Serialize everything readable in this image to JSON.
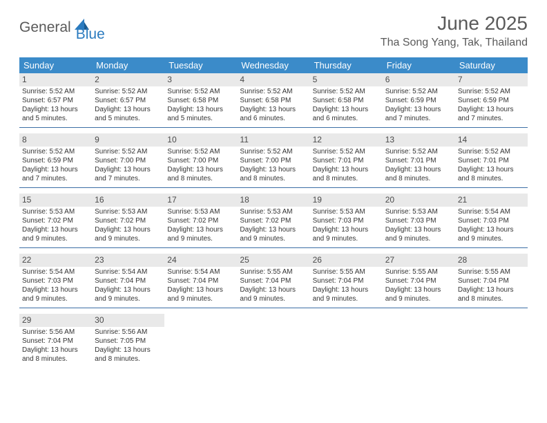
{
  "logo": {
    "text1": "General",
    "text2": "Blue",
    "icon_color": "#2b7bbf"
  },
  "title": "June 2025",
  "location": "Tha Song Yang, Tak, Thailand",
  "colors": {
    "header_bg": "#3b8bc9",
    "header_text": "#ffffff",
    "daynum_bg": "#e9e9e9",
    "rule": "#3b6ea5",
    "body_text": "#333333"
  },
  "dow": [
    "Sunday",
    "Monday",
    "Tuesday",
    "Wednesday",
    "Thursday",
    "Friday",
    "Saturday"
  ],
  "weeks": [
    [
      {
        "n": "1",
        "sr": "Sunrise: 5:52 AM",
        "ss": "Sunset: 6:57 PM",
        "dl": "Daylight: 13 hours and 5 minutes."
      },
      {
        "n": "2",
        "sr": "Sunrise: 5:52 AM",
        "ss": "Sunset: 6:57 PM",
        "dl": "Daylight: 13 hours and 5 minutes."
      },
      {
        "n": "3",
        "sr": "Sunrise: 5:52 AM",
        "ss": "Sunset: 6:58 PM",
        "dl": "Daylight: 13 hours and 5 minutes."
      },
      {
        "n": "4",
        "sr": "Sunrise: 5:52 AM",
        "ss": "Sunset: 6:58 PM",
        "dl": "Daylight: 13 hours and 6 minutes."
      },
      {
        "n": "5",
        "sr": "Sunrise: 5:52 AM",
        "ss": "Sunset: 6:58 PM",
        "dl": "Daylight: 13 hours and 6 minutes."
      },
      {
        "n": "6",
        "sr": "Sunrise: 5:52 AM",
        "ss": "Sunset: 6:59 PM",
        "dl": "Daylight: 13 hours and 7 minutes."
      },
      {
        "n": "7",
        "sr": "Sunrise: 5:52 AM",
        "ss": "Sunset: 6:59 PM",
        "dl": "Daylight: 13 hours and 7 minutes."
      }
    ],
    [
      {
        "n": "8",
        "sr": "Sunrise: 5:52 AM",
        "ss": "Sunset: 6:59 PM",
        "dl": "Daylight: 13 hours and 7 minutes."
      },
      {
        "n": "9",
        "sr": "Sunrise: 5:52 AM",
        "ss": "Sunset: 7:00 PM",
        "dl": "Daylight: 13 hours and 7 minutes."
      },
      {
        "n": "10",
        "sr": "Sunrise: 5:52 AM",
        "ss": "Sunset: 7:00 PM",
        "dl": "Daylight: 13 hours and 8 minutes."
      },
      {
        "n": "11",
        "sr": "Sunrise: 5:52 AM",
        "ss": "Sunset: 7:00 PM",
        "dl": "Daylight: 13 hours and 8 minutes."
      },
      {
        "n": "12",
        "sr": "Sunrise: 5:52 AM",
        "ss": "Sunset: 7:01 PM",
        "dl": "Daylight: 13 hours and 8 minutes."
      },
      {
        "n": "13",
        "sr": "Sunrise: 5:52 AM",
        "ss": "Sunset: 7:01 PM",
        "dl": "Daylight: 13 hours and 8 minutes."
      },
      {
        "n": "14",
        "sr": "Sunrise: 5:52 AM",
        "ss": "Sunset: 7:01 PM",
        "dl": "Daylight: 13 hours and 8 minutes."
      }
    ],
    [
      {
        "n": "15",
        "sr": "Sunrise: 5:53 AM",
        "ss": "Sunset: 7:02 PM",
        "dl": "Daylight: 13 hours and 9 minutes."
      },
      {
        "n": "16",
        "sr": "Sunrise: 5:53 AM",
        "ss": "Sunset: 7:02 PM",
        "dl": "Daylight: 13 hours and 9 minutes."
      },
      {
        "n": "17",
        "sr": "Sunrise: 5:53 AM",
        "ss": "Sunset: 7:02 PM",
        "dl": "Daylight: 13 hours and 9 minutes."
      },
      {
        "n": "18",
        "sr": "Sunrise: 5:53 AM",
        "ss": "Sunset: 7:02 PM",
        "dl": "Daylight: 13 hours and 9 minutes."
      },
      {
        "n": "19",
        "sr": "Sunrise: 5:53 AM",
        "ss": "Sunset: 7:03 PM",
        "dl": "Daylight: 13 hours and 9 minutes."
      },
      {
        "n": "20",
        "sr": "Sunrise: 5:53 AM",
        "ss": "Sunset: 7:03 PM",
        "dl": "Daylight: 13 hours and 9 minutes."
      },
      {
        "n": "21",
        "sr": "Sunrise: 5:54 AM",
        "ss": "Sunset: 7:03 PM",
        "dl": "Daylight: 13 hours and 9 minutes."
      }
    ],
    [
      {
        "n": "22",
        "sr": "Sunrise: 5:54 AM",
        "ss": "Sunset: 7:03 PM",
        "dl": "Daylight: 13 hours and 9 minutes."
      },
      {
        "n": "23",
        "sr": "Sunrise: 5:54 AM",
        "ss": "Sunset: 7:04 PM",
        "dl": "Daylight: 13 hours and 9 minutes."
      },
      {
        "n": "24",
        "sr": "Sunrise: 5:54 AM",
        "ss": "Sunset: 7:04 PM",
        "dl": "Daylight: 13 hours and 9 minutes."
      },
      {
        "n": "25",
        "sr": "Sunrise: 5:55 AM",
        "ss": "Sunset: 7:04 PM",
        "dl": "Daylight: 13 hours and 9 minutes."
      },
      {
        "n": "26",
        "sr": "Sunrise: 5:55 AM",
        "ss": "Sunset: 7:04 PM",
        "dl": "Daylight: 13 hours and 9 minutes."
      },
      {
        "n": "27",
        "sr": "Sunrise: 5:55 AM",
        "ss": "Sunset: 7:04 PM",
        "dl": "Daylight: 13 hours and 9 minutes."
      },
      {
        "n": "28",
        "sr": "Sunrise: 5:55 AM",
        "ss": "Sunset: 7:04 PM",
        "dl": "Daylight: 13 hours and 8 minutes."
      }
    ],
    [
      {
        "n": "29",
        "sr": "Sunrise: 5:56 AM",
        "ss": "Sunset: 7:04 PM",
        "dl": "Daylight: 13 hours and 8 minutes."
      },
      {
        "n": "30",
        "sr": "Sunrise: 5:56 AM",
        "ss": "Sunset: 7:05 PM",
        "dl": "Daylight: 13 hours and 8 minutes."
      },
      {
        "empty": true
      },
      {
        "empty": true
      },
      {
        "empty": true
      },
      {
        "empty": true
      },
      {
        "empty": true
      }
    ]
  ]
}
